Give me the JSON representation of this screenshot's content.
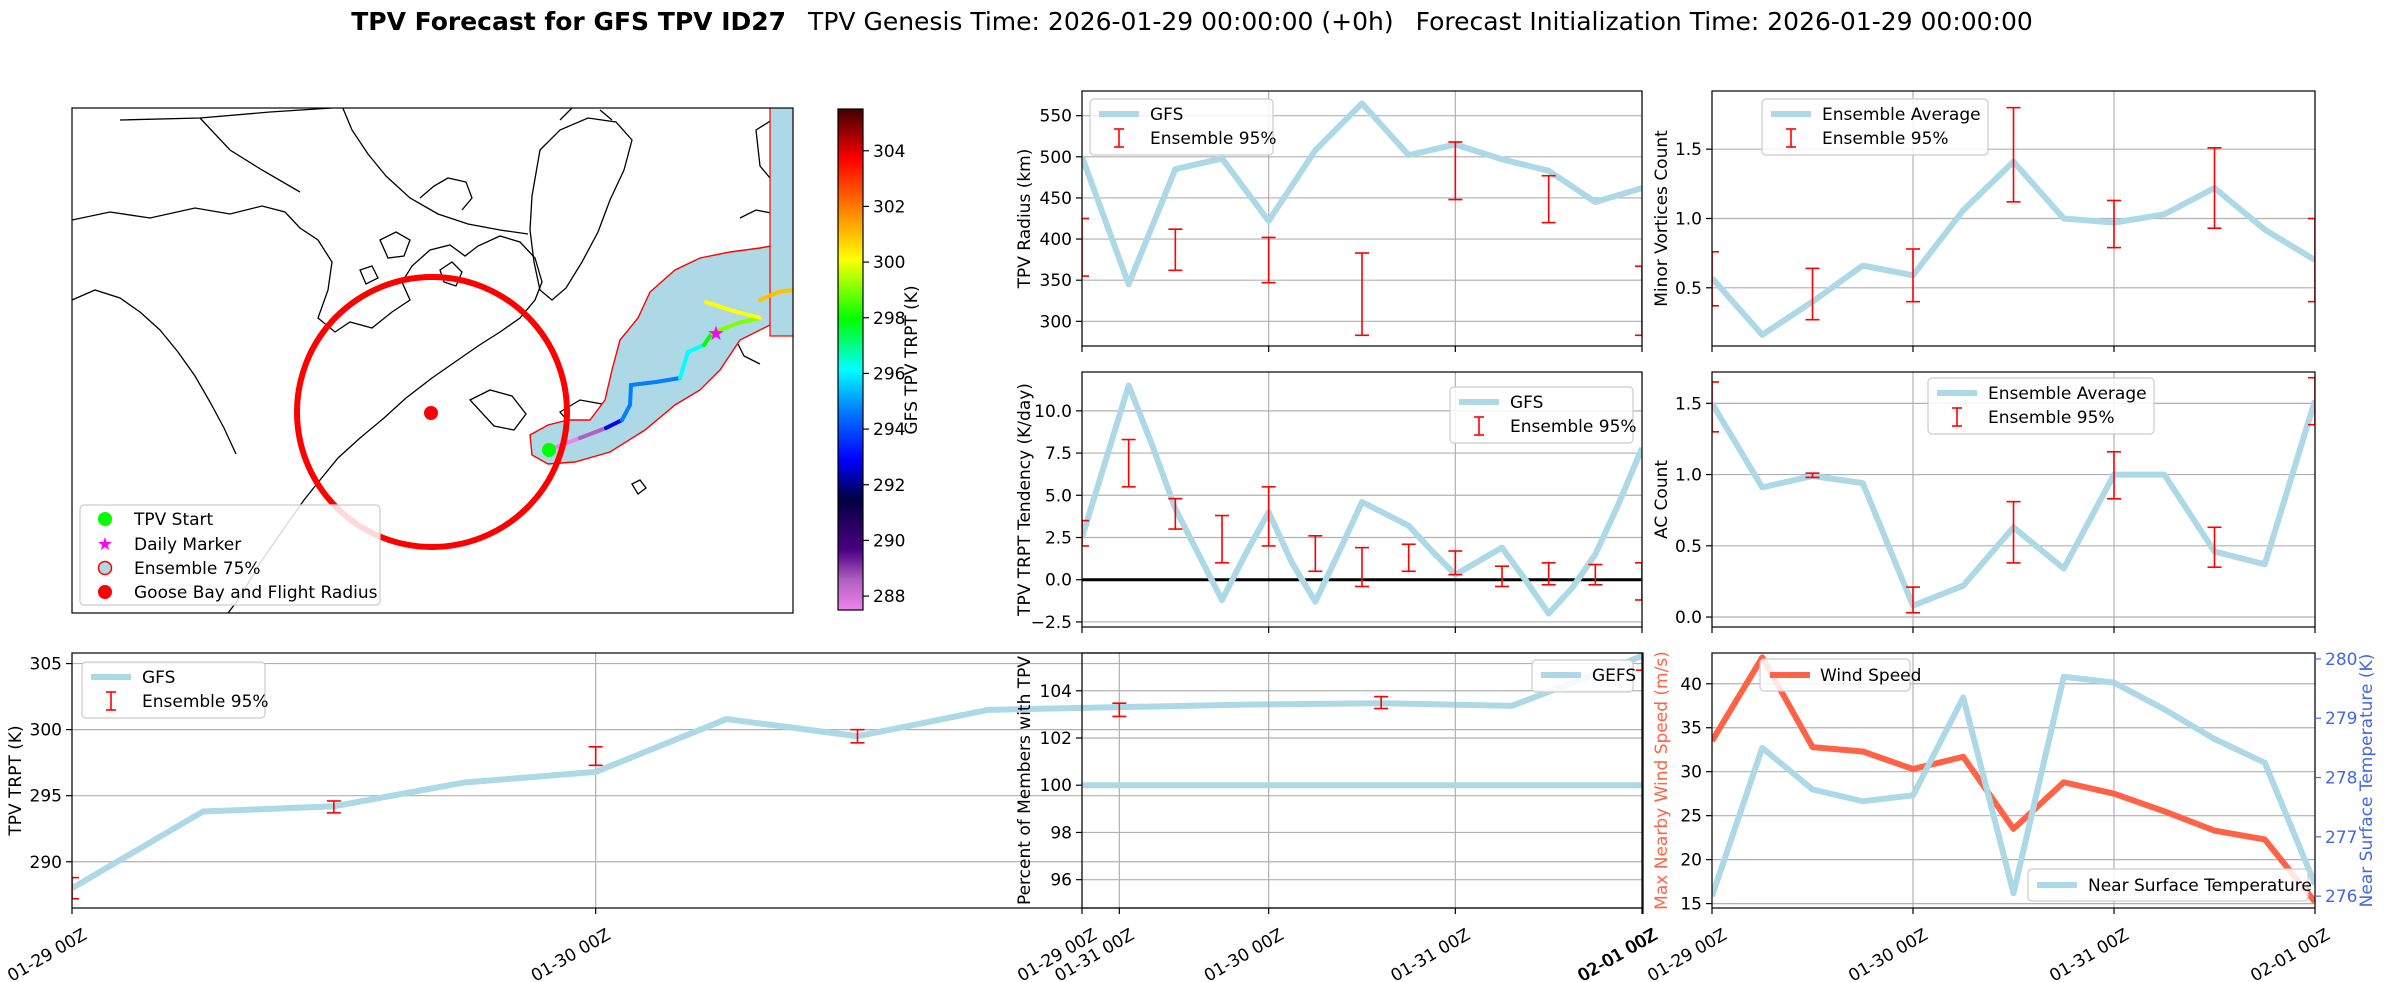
{
  "title": {
    "bold": "TPV Forecast for GFS TPV ID27",
    "genesis": "TPV Genesis Time: 2026-01-29 00:00:00 (+0h)",
    "init": "Forecast Initialization Time: 2026-01-29 00:00:00"
  },
  "colors": {
    "gfs_line": "#add8e6",
    "error_bar": "#ff0000",
    "wind": "#ff6347",
    "temp_axis": "#4169e1",
    "zero_line": "#000000"
  },
  "map": {
    "legend": [
      "TPV Start",
      "Daily Marker",
      "Ensemble 75%",
      "Goose Bay and Flight Radius"
    ],
    "colorbar": {
      "label": "GFS TPV TRPT (K)",
      "ticks": [
        "288",
        "290",
        "292",
        "294",
        "296",
        "298",
        "300",
        "302",
        "304"
      ],
      "min": 287.5,
      "max": 305.5
    }
  },
  "chart_data": [
    {
      "id": "trpt",
      "type": "line",
      "ylabel": "TPV TRPT (K)",
      "ylim": [
        286.5,
        305.8
      ],
      "yticks": [
        290,
        295,
        300,
        305
      ],
      "xlim": [
        0,
        72
      ],
      "xticks": [
        0,
        24,
        48,
        72
      ],
      "xticklabels": [
        "01-29 00Z",
        "01-30 00Z",
        "01-31 00Z",
        "02-01 00Z"
      ],
      "legend": [
        "GFS",
        "Ensemble 95%"
      ],
      "legend_loc": "upper left",
      "x": [
        0,
        6,
        12,
        18,
        24,
        30,
        36,
        42,
        48,
        54,
        60,
        66,
        72
      ],
      "series": [
        {
          "name": "GFS",
          "values": [
            288.0,
            293.8,
            294.2,
            296.0,
            296.8,
            300.8,
            299.5,
            301.5,
            301.7,
            301.9,
            302.0,
            301.8,
            305.6
          ]
        }
      ],
      "errorbars": [
        {
          "x": 0,
          "low": 287.2,
          "high": 288.8
        },
        {
          "x": 12,
          "low": 293.7,
          "high": 294.6
        },
        {
          "x": 24,
          "low": 297.3,
          "high": 298.7
        },
        {
          "x": 36,
          "low": 299.0,
          "high": 300.0
        },
        {
          "x": 48,
          "low": 301.0,
          "high": 302.0
        },
        {
          "x": 60,
          "low": 301.6,
          "high": 302.5
        },
        {
          "x": 72,
          "low": 304.5,
          "high": 306.0
        }
      ]
    },
    {
      "id": "radius",
      "type": "line",
      "ylabel": "TPV Radius (km)",
      "ylim": [
        270,
        580
      ],
      "yticks": [
        300,
        350,
        400,
        450,
        500,
        550
      ],
      "xlim": [
        0,
        72
      ],
      "xticks": [
        0,
        24,
        48,
        72
      ],
      "xticklabels": [],
      "legend": [
        "GFS",
        "Ensemble 95%"
      ],
      "legend_loc": "upper left",
      "x": [
        0,
        6,
        12,
        18,
        24,
        30,
        36,
        42,
        48,
        54,
        60,
        66,
        72
      ],
      "series": [
        {
          "name": "GFS",
          "values": [
            500,
            345,
            485,
            498,
            422,
            508,
            565,
            502,
            515,
            497,
            483,
            445,
            462
          ]
        }
      ],
      "errorbars": [
        {
          "x": 0,
          "low": 355,
          "high": 425
        },
        {
          "x": 12,
          "low": 362,
          "high": 412
        },
        {
          "x": 24,
          "low": 347,
          "high": 402
        },
        {
          "x": 36,
          "low": 283,
          "high": 383
        },
        {
          "x": 48,
          "low": 448,
          "high": 518
        },
        {
          "x": 60,
          "low": 420,
          "high": 477
        },
        {
          "x": 72,
          "low": 283,
          "high": 367
        }
      ]
    },
    {
      "id": "tendency",
      "type": "line",
      "ylabel": "TPV TRPT Tendency (K/day)",
      "ylim": [
        -2.8,
        12.3
      ],
      "yticks": [
        -2.5,
        0.0,
        2.5,
        5.0,
        7.5,
        10.0
      ],
      "yticklabels": [
        "−2.5",
        "0.0",
        "2.5",
        "5.0",
        "7.5",
        "10.0"
      ],
      "zero_line": 0,
      "xlim": [
        0,
        72
      ],
      "xticks": [
        0,
        24,
        48,
        72
      ],
      "xticklabels": [],
      "legend": [
        "GFS",
        "Ensemble 95%"
      ],
      "legend_loc": "upper right",
      "x": [
        0,
        3,
        6,
        9,
        12,
        15,
        18,
        21,
        24,
        27,
        30,
        33,
        36,
        39,
        42,
        45,
        48,
        51,
        54,
        57,
        60,
        63,
        66,
        69,
        72
      ],
      "series": [
        {
          "name": "GFS",
          "values": [
            2.5,
            7.0,
            11.5,
            8.0,
            4.2,
            1.5,
            -1.2,
            1.5,
            4.0,
            1.0,
            -1.3,
            1.6,
            4.6,
            3.9,
            3.2,
            1.7,
            0.3,
            1.1,
            1.9,
            0.0,
            -2.0,
            -0.5,
            1.5,
            4.5,
            7.8
          ]
        }
      ],
      "errorbars": [
        {
          "x": 0,
          "low": 2.0,
          "high": 3.5
        },
        {
          "x": 6,
          "low": 5.5,
          "high": 8.3
        },
        {
          "x": 12,
          "low": 3.0,
          "high": 4.8
        },
        {
          "x": 18,
          "low": 1.0,
          "high": 3.8
        },
        {
          "x": 24,
          "low": 2.0,
          "high": 5.5
        },
        {
          "x": 30,
          "low": 0.5,
          "high": 2.6
        },
        {
          "x": 36,
          "low": -0.4,
          "high": 1.9
        },
        {
          "x": 42,
          "low": 0.5,
          "high": 2.1
        },
        {
          "x": 48,
          "low": 0.3,
          "high": 1.7
        },
        {
          "x": 54,
          "low": -0.4,
          "high": 0.8
        },
        {
          "x": 60,
          "low": -0.3,
          "high": 1.0
        },
        {
          "x": 66,
          "low": -0.3,
          "high": 0.9
        },
        {
          "x": 72,
          "low": -1.2,
          "high": 1.0
        }
      ]
    },
    {
      "id": "percent",
      "type": "line",
      "ylabel": "Percent of Members with TPV",
      "ylim": [
        94.8,
        105.6
      ],
      "yticks": [
        96,
        98,
        100,
        102,
        104
      ],
      "xlim": [
        0,
        72
      ],
      "xticks": [
        0,
        24,
        48,
        72
      ],
      "xticklabels": [
        "01-29 00Z",
        "01-30 00Z",
        "01-31 00Z",
        "02-01 00Z"
      ],
      "legend": [
        "GEFS"
      ],
      "legend_loc": "upper right",
      "x": [
        0,
        72
      ],
      "series": [
        {
          "name": "GEFS",
          "values": [
            100,
            100
          ]
        }
      ],
      "errorbars": []
    },
    {
      "id": "minor",
      "type": "line",
      "ylabel": "Minor Vortices Count",
      "ylim": [
        0.08,
        1.92
      ],
      "yticks": [
        0.5,
        1.0,
        1.5
      ],
      "yticklabels": [
        "0.5",
        "1.0",
        "1.5"
      ],
      "xlim": [
        0,
        72
      ],
      "xticks": [
        0,
        24,
        48,
        72
      ],
      "xticklabels": [],
      "legend": [
        "Ensemble Average",
        "Ensemble 95%"
      ],
      "legend_loc": "upper left",
      "x": [
        0,
        6,
        12,
        18,
        24,
        30,
        36,
        42,
        48,
        54,
        60,
        66,
        72
      ],
      "series": [
        {
          "name": "Ensemble Average",
          "values": [
            0.57,
            0.16,
            0.4,
            0.66,
            0.59,
            1.06,
            1.41,
            1.0,
            0.97,
            1.03,
            1.22,
            0.92,
            0.7
          ]
        }
      ],
      "errorbars": [
        {
          "x": 0,
          "low": 0.37,
          "high": 0.76
        },
        {
          "x": 12,
          "low": 0.27,
          "high": 0.64
        },
        {
          "x": 24,
          "low": 0.4,
          "high": 0.78
        },
        {
          "x": 36,
          "low": 1.12,
          "high": 1.8
        },
        {
          "x": 48,
          "low": 0.79,
          "high": 1.13
        },
        {
          "x": 60,
          "low": 0.93,
          "high": 1.51
        },
        {
          "x": 72,
          "low": 0.4,
          "high": 1.0
        }
      ]
    },
    {
      "id": "ac",
      "type": "line",
      "ylabel": "AC Count",
      "ylim": [
        -0.07,
        1.72
      ],
      "yticks": [
        0.0,
        0.5,
        1.0,
        1.5
      ],
      "yticklabels": [
        "0.0",
        "0.5",
        "1.0",
        "1.5"
      ],
      "xlim": [
        0,
        72
      ],
      "xticks": [
        0,
        24,
        48,
        72
      ],
      "xticklabels": [],
      "legend": [
        "Ensemble Average",
        "Ensemble 95%"
      ],
      "legend_loc": "upper center",
      "x": [
        0,
        6,
        12,
        18,
        24,
        30,
        36,
        42,
        48,
        54,
        60,
        66,
        72
      ],
      "series": [
        {
          "name": "Ensemble Average",
          "values": [
            1.5,
            0.91,
            0.99,
            0.94,
            0.08,
            0.22,
            0.63,
            0.34,
            1.0,
            1.0,
            0.46,
            0.37,
            1.52
          ]
        }
      ],
      "errorbars": [
        {
          "x": 0,
          "low": 1.3,
          "high": 1.65
        },
        {
          "x": 12,
          "low": 0.98,
          "high": 1.01
        },
        {
          "x": 24,
          "low": 0.03,
          "high": 0.21
        },
        {
          "x": 36,
          "low": 0.38,
          "high": 0.81
        },
        {
          "x": 48,
          "low": 0.83,
          "high": 1.16
        },
        {
          "x": 60,
          "low": 0.35,
          "high": 0.63
        },
        {
          "x": 72,
          "low": 1.35,
          "high": 1.68
        }
      ]
    },
    {
      "id": "wind_temp",
      "type": "line",
      "ylabel": "Max Nearby Wind Speed (m/s)",
      "ylabel_right": "Near Surface Temperature (K)",
      "ylim": [
        14.5,
        43.5
      ],
      "yticks": [
        15,
        20,
        25,
        30,
        35,
        40
      ],
      "ylim_right": [
        275.8,
        280.1
      ],
      "yticks_right": [
        276,
        277,
        278,
        279,
        280
      ],
      "xlim": [
        0,
        72
      ],
      "xticks": [
        0,
        24,
        48,
        72
      ],
      "xticklabels": [
        "01-29 00Z",
        "01-30 00Z",
        "01-31 00Z",
        "02-01 00Z"
      ],
      "legend": [
        "Wind Speed",
        "Near Surface Temperature"
      ],
      "x": [
        0,
        6,
        12,
        18,
        24,
        30,
        36,
        42,
        48,
        54,
        60,
        66,
        72
      ],
      "series": [
        {
          "name": "Wind Speed",
          "axis": "left",
          "values": [
            33.5,
            43.0,
            32.8,
            32.3,
            30.3,
            31.7,
            23.5,
            28.8,
            27.5,
            25.5,
            23.3,
            22.3,
            15.2
          ]
        },
        {
          "name": "Near Surface Temperature",
          "axis": "right",
          "values": [
            276.0,
            278.5,
            277.8,
            277.6,
            277.7,
            279.35,
            276.05,
            279.7,
            279.6,
            279.15,
            278.65,
            278.25,
            276.2
          ]
        }
      ],
      "errorbars": []
    }
  ]
}
